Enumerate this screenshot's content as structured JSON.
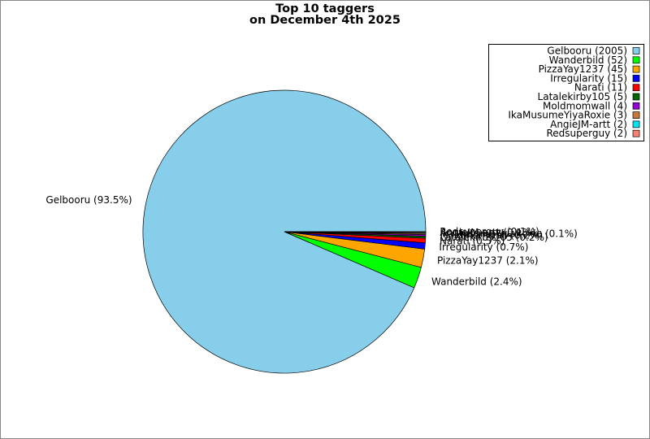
{
  "chart_data": {
    "type": "pie",
    "title": [
      "Top 10 taggers",
      "on December 4th 2025"
    ],
    "categories": [
      "Gelbooru",
      "Wanderbild",
      "PizzaYay1237",
      "Irregularity",
      "Narati",
      "Latalekirby105",
      "Moldmomwall",
      "IkaMusumeYiyaRoxie",
      "AngieJM-artt",
      "Redsuperguy"
    ],
    "values": [
      2005,
      52,
      45,
      15,
      11,
      5,
      4,
      3,
      2,
      2
    ],
    "legend_labels": [
      "Gelbooru (2005)",
      "Wanderbild (52)",
      "PizzaYay1237 (45)",
      "Irregularity (15)",
      "Narati (11)",
      "Latalekirby105 (5)",
      "Moldmomwall (4)",
      "IkaMusumeYiyaRoxie (3)",
      "AngieJM-artt (2)",
      "Redsuperguy (2)"
    ],
    "slice_labels": [
      "Gelbooru (93.5%)",
      "Wanderbild (2.4%)",
      "PizzaYay1237 (2.1%)",
      "Irregularity (0.7%)",
      "Narati (0.5%)",
      "Latalekirby105 (0.2%)",
      "Moldmomwall (0.2%)",
      "IkaMusumeYiyaRoxie (0.1%)",
      "AngieJM-artt (0.1%)",
      "Redsuperguy (0.1%)"
    ],
    "colors": [
      "#87ceeb",
      "#00ff00",
      "#ffa500",
      "#0000ff",
      "#ff0000",
      "#006400",
      "#9400d3",
      "#c87a3c",
      "#00e5ee",
      "#fa8072"
    ],
    "legend": "upper right"
  }
}
